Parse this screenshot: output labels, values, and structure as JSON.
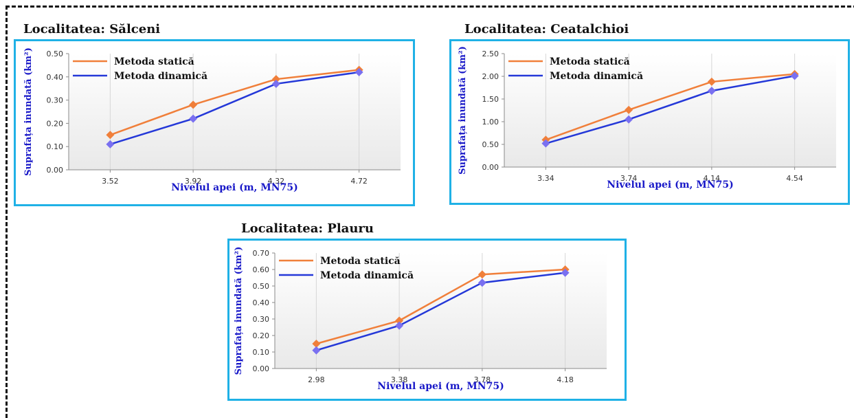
{
  "colors": {
    "frame_border": "#1fb1e6",
    "series_static": "#f07f3a",
    "series_dynamic": "#2438d8",
    "marker_dynamic": "#7a70f0",
    "axis_title": "#1818c8"
  },
  "charts": [
    {
      "title": "Localitatea: Sălceni"
    },
    {
      "title": "Localitatea: Ceatalchioi"
    },
    {
      "title": "Localitatea: Plauru"
    }
  ],
  "chart_data": [
    {
      "type": "line",
      "title": "Localitatea: Sălceni",
      "xlabel": "Nivelul apei (m, MN75)",
      "ylabel": "Suprafața inundată (km²)",
      "categories": [
        "3.52",
        "3.92",
        "4.32",
        "4.72"
      ],
      "ylim": [
        0,
        0.5
      ],
      "yticks": [
        "0.00",
        "0.10",
        "0.20",
        "0.30",
        "0.40",
        "0.50"
      ],
      "legend_position": "top-left",
      "series": [
        {
          "name": "Metoda statică",
          "values": [
            0.15,
            0.28,
            0.39,
            0.43
          ]
        },
        {
          "name": "Metoda dinamică",
          "values": [
            0.11,
            0.22,
            0.37,
            0.42
          ]
        }
      ]
    },
    {
      "type": "line",
      "title": "Localitatea: Ceatalchioi",
      "xlabel": "Nivelul apei (m, MN75)",
      "ylabel": "Suprafața inundată (km²)",
      "categories": [
        "3.34",
        "3.74",
        "4.14",
        "4.54"
      ],
      "ylim": [
        0,
        2.5
      ],
      "yticks": [
        "0.00",
        "0.50",
        "1.00",
        "1.50",
        "2.00",
        "2.50"
      ],
      "legend_position": "top-left",
      "series": [
        {
          "name": "Metoda statică",
          "values": [
            0.6,
            1.26,
            1.88,
            2.05
          ]
        },
        {
          "name": "Metoda dinamică",
          "values": [
            0.52,
            1.05,
            1.68,
            2.01
          ]
        }
      ]
    },
    {
      "type": "line",
      "title": "Localitatea: Plauru",
      "xlabel": "Nivelul apei (m, MN75)",
      "ylabel": "Suprafața inundată (km²)",
      "categories": [
        "2.98",
        "3.38",
        "3.78",
        "4.18"
      ],
      "ylim": [
        0,
        0.7
      ],
      "yticks": [
        "0.00",
        "0.10",
        "0.20",
        "0.30",
        "0.40",
        "0.50",
        "0.60",
        "0.70"
      ],
      "legend_position": "top-left",
      "series": [
        {
          "name": "Metoda statică",
          "values": [
            0.15,
            0.29,
            0.57,
            0.6
          ]
        },
        {
          "name": "Metoda dinamică",
          "values": [
            0.11,
            0.26,
            0.52,
            0.58
          ]
        }
      ]
    }
  ]
}
